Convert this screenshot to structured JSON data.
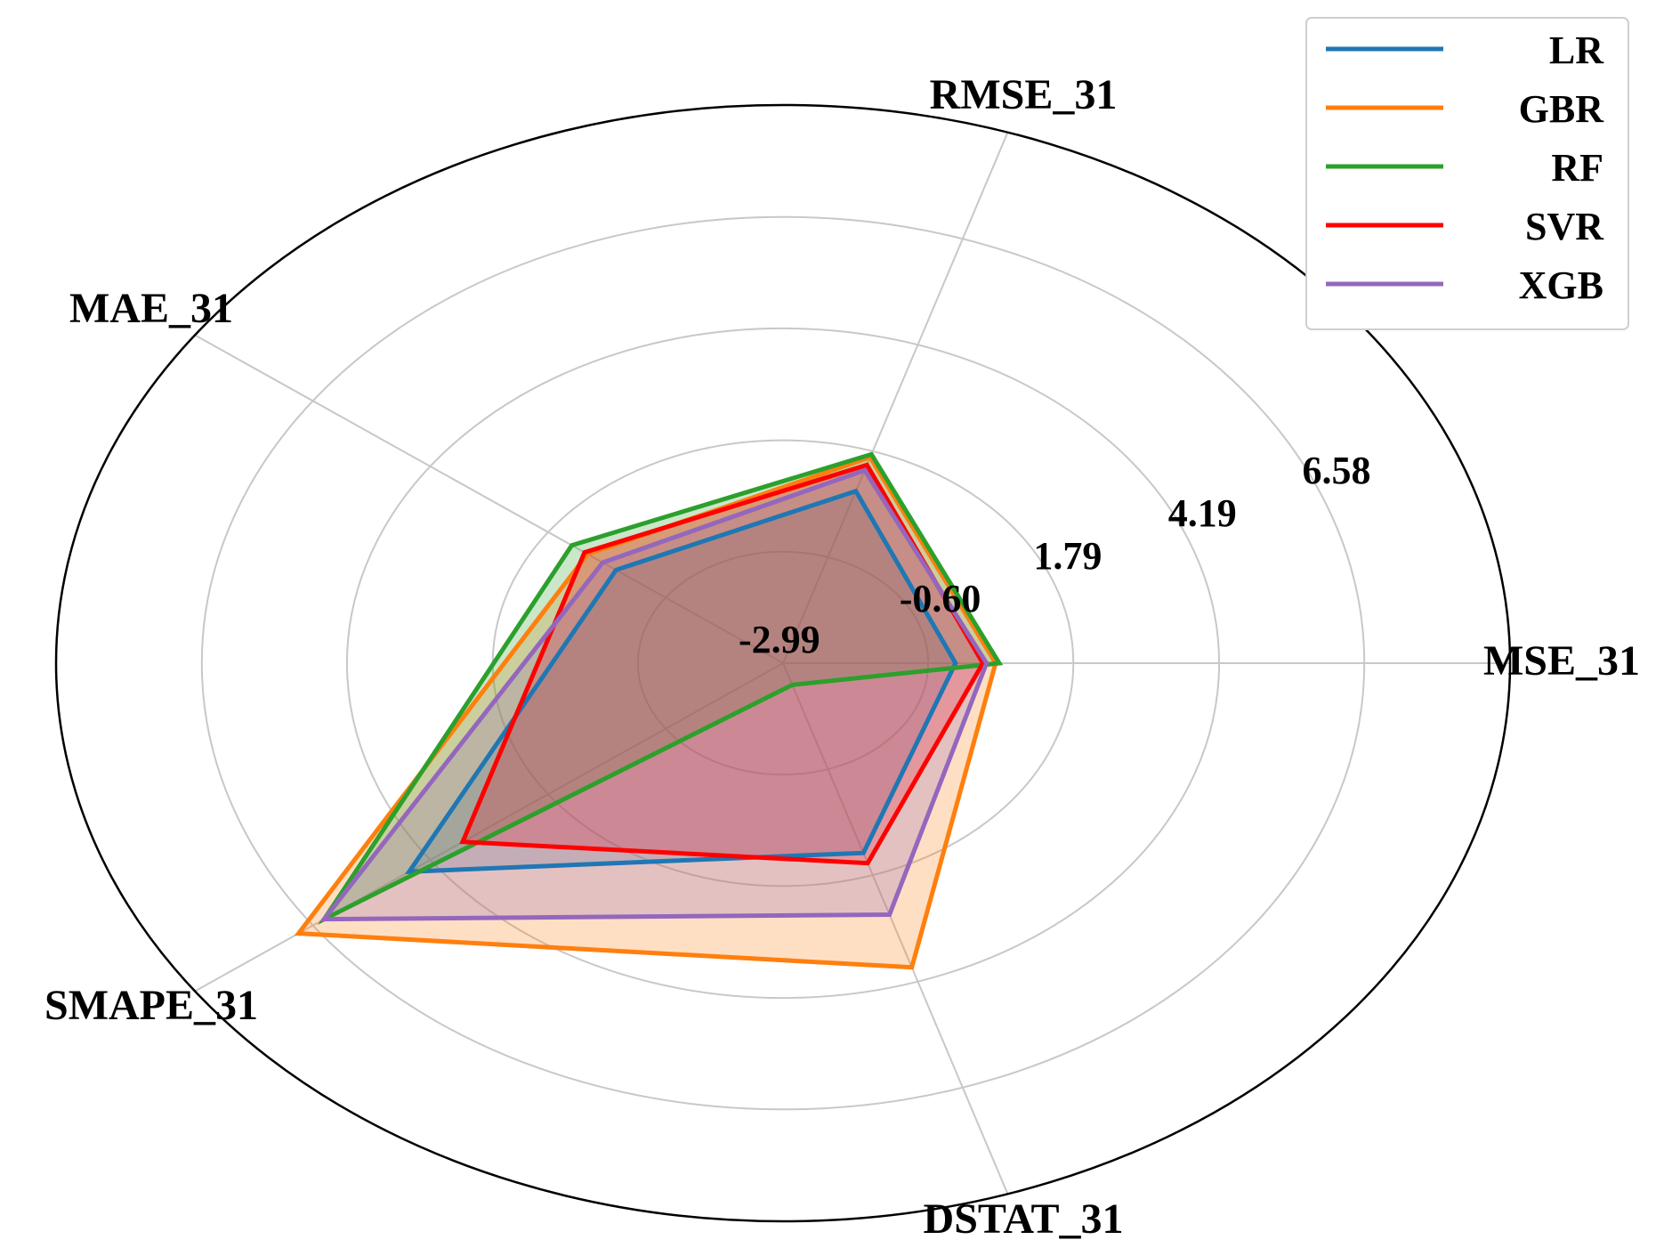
{
  "chart_data": {
    "type": "radar",
    "axes": [
      "MSE_31",
      "RMSE_31",
      "MAE_31",
      "SMAPE_31",
      "DSTAT_31"
    ],
    "rlim": [
      -2.99,
      8.98
    ],
    "ticks": [
      -2.99,
      -0.6,
      1.79,
      4.19,
      6.58
    ],
    "tick_labels": [
      "-2.99",
      "-0.60",
      "1.79",
      "4.19",
      "6.58"
    ],
    "grid": true,
    "legend_position": "top-right",
    "series": [
      {
        "name": "LR",
        "color": "#1f77b4",
        "values": [
          -0.15,
          0.89,
          0.41,
          4.62,
          1.29
        ]
      },
      {
        "name": "GBR",
        "color": "#ff7f0e",
        "values": [
          0.51,
          1.65,
          0.99,
          6.87,
          3.87
        ]
      },
      {
        "name": "RF",
        "color": "#2ca02c",
        "values": [
          0.57,
          1.72,
          1.31,
          6.35,
          -2.5
        ]
      },
      {
        "name": "SVR",
        "color": "#ff0000",
        "values": [
          0.3,
          1.48,
          1.05,
          3.53,
          1.52
        ]
      },
      {
        "name": "XGB",
        "color": "#9467bd",
        "values": [
          0.36,
          1.36,
          0.68,
          6.35,
          2.68
        ]
      }
    ]
  }
}
